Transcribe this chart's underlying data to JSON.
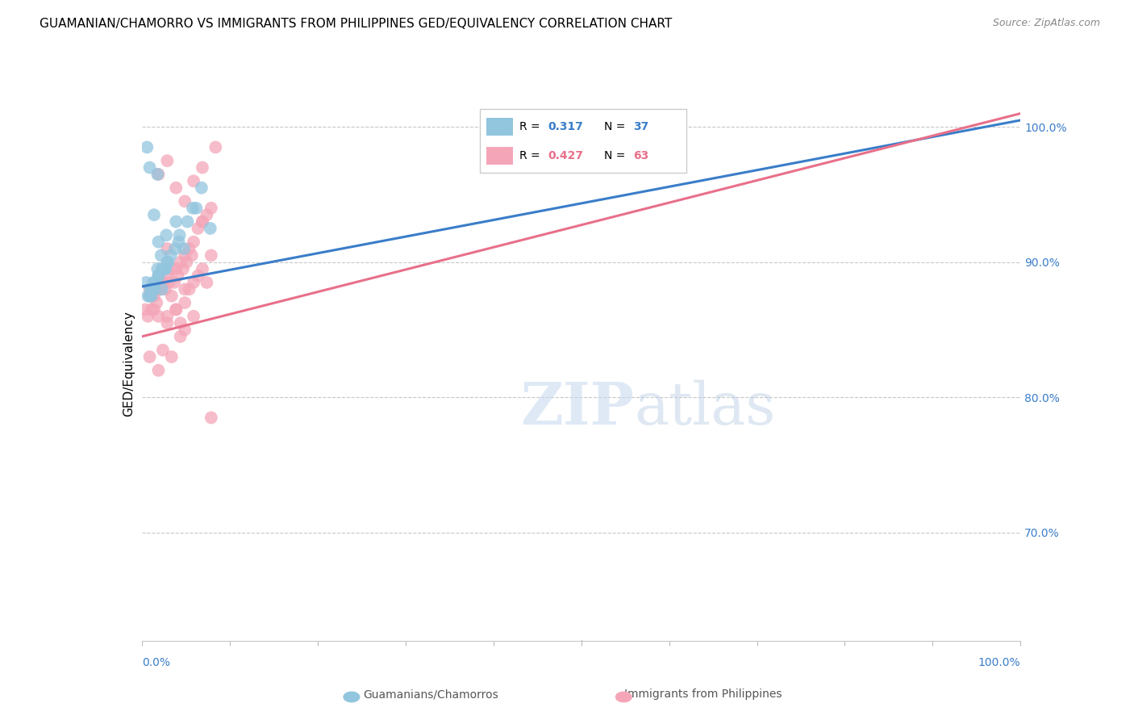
{
  "title": "GUAMANIAN/CHAMORRO VS IMMIGRANTS FROM PHILIPPINES GED/EQUIVALENCY CORRELATION CHART",
  "source": "Source: ZipAtlas.com",
  "ylabel": "GED/Equivalency",
  "blue_R": "0.317",
  "blue_N": "37",
  "pink_R": "0.427",
  "pink_N": "63",
  "blue_color": "#92c5de",
  "pink_color": "#f4a6b8",
  "blue_line_color": "#3a7dc9",
  "pink_line_color": "#e8708a",
  "legend_blue_label": "Guamanians/Chamorros",
  "legend_pink_label": "Immigrants from Philippines",
  "watermark_zip": "ZIP",
  "watermark_atlas": "atlas",
  "blue_x": [
    0.5,
    1.8,
    2.2,
    2.7,
    1.0,
    1.1,
    1.4,
    1.9,
    2.3,
    4.2,
    1.3,
    2.6,
    3.0,
    3.8,
    0.7,
    0.9,
    1.2,
    1.5,
    1.9,
    2.4,
    2.9,
    4.3,
    5.2,
    5.8,
    6.8,
    1.8,
    0.9,
    0.6,
    1.4,
    1.9,
    2.8,
    3.9,
    4.8,
    6.2,
    7.8,
    2.3,
    3.3
  ],
  "blue_y": [
    88.5,
    89.5,
    90.5,
    89.5,
    88.0,
    87.5,
    88.0,
    89.0,
    89.5,
    91.5,
    88.5,
    89.5,
    90.0,
    91.0,
    87.5,
    87.5,
    88.0,
    88.5,
    89.0,
    89.5,
    90.0,
    92.0,
    93.0,
    94.0,
    95.5,
    96.5,
    97.0,
    98.5,
    93.5,
    91.5,
    92.0,
    93.0,
    91.0,
    94.0,
    92.5,
    88.0,
    90.5
  ],
  "pink_x": [
    0.4,
    0.9,
    1.4,
    1.9,
    2.4,
    2.9,
    3.4,
    3.9,
    4.4,
    4.9,
    5.4,
    5.9,
    6.4,
    6.9,
    7.4,
    7.9,
    1.1,
    1.7,
    2.1,
    2.7,
    3.1,
    3.7,
    4.1,
    4.7,
    5.1,
    5.7,
    0.7,
    1.4,
    1.9,
    2.9,
    3.9,
    4.9,
    5.9,
    6.9,
    7.9,
    2.4,
    3.4,
    4.4,
    0.9,
    1.9,
    2.9,
    3.9,
    4.9,
    5.9,
    7.4,
    1.4,
    2.4,
    3.4,
    4.4,
    5.4,
    6.4,
    1.9,
    2.9,
    3.9,
    4.9,
    5.9,
    6.9,
    8.4,
    0.9,
    2.9,
    4.9,
    6.9,
    7.9
  ],
  "pink_y": [
    86.5,
    87.5,
    87.5,
    88.0,
    88.5,
    89.0,
    89.5,
    89.5,
    90.0,
    90.5,
    91.0,
    91.5,
    92.5,
    93.0,
    93.5,
    94.0,
    86.5,
    87.0,
    88.0,
    88.0,
    88.5,
    88.5,
    89.0,
    89.5,
    90.0,
    90.5,
    86.0,
    86.5,
    86.0,
    85.5,
    86.5,
    87.0,
    88.5,
    89.5,
    90.5,
    83.5,
    83.0,
    84.5,
    83.0,
    82.0,
    86.0,
    86.5,
    85.0,
    86.0,
    88.5,
    88.0,
    88.5,
    87.5,
    85.5,
    88.0,
    89.0,
    96.5,
    97.5,
    95.5,
    94.5,
    96.0,
    97.0,
    98.5,
    88.0,
    91.0,
    88.0,
    93.0,
    78.5
  ],
  "xlim_pct": [
    0,
    100
  ],
  "ylim": [
    62,
    103
  ],
  "blue_line": {
    "x0": 0,
    "x1": 100,
    "y0": 88.2,
    "y1": 100.5
  },
  "pink_line": {
    "x0": 0,
    "x1": 100,
    "y0": 84.5,
    "y1": 101.0
  },
  "right_yticks": [
    100,
    90,
    80,
    70
  ],
  "blue_label_color": "#3a7dc9",
  "pink_label_color": "#e8708a",
  "n_color": "#3a7dc9"
}
